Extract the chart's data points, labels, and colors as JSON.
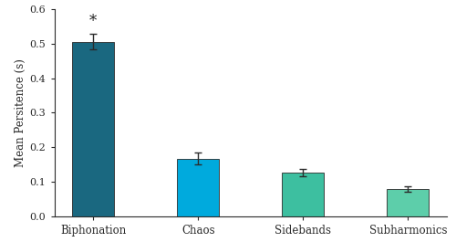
{
  "categories": [
    "Biphonation",
    "Chaos",
    "Sidebands",
    "Subharmonics"
  ],
  "values": [
    0.505,
    0.168,
    0.127,
    0.079
  ],
  "errors": [
    0.022,
    0.018,
    0.01,
    0.008
  ],
  "bar_colors": [
    "#1a6880",
    "#00aadd",
    "#3dbfa0",
    "#5dceaa"
  ],
  "ylabel": "Mean Persitence (s)",
  "ylim": [
    0,
    0.6
  ],
  "yticks": [
    0.0,
    0.1,
    0.2,
    0.3,
    0.4,
    0.5,
    0.6
  ],
  "significance_label": "*",
  "sig_bar_index": 0,
  "background_color": "#ffffff",
  "bar_width": 0.4,
  "edge_color": "#2a2a2a",
  "error_color": "#2a2a2a"
}
